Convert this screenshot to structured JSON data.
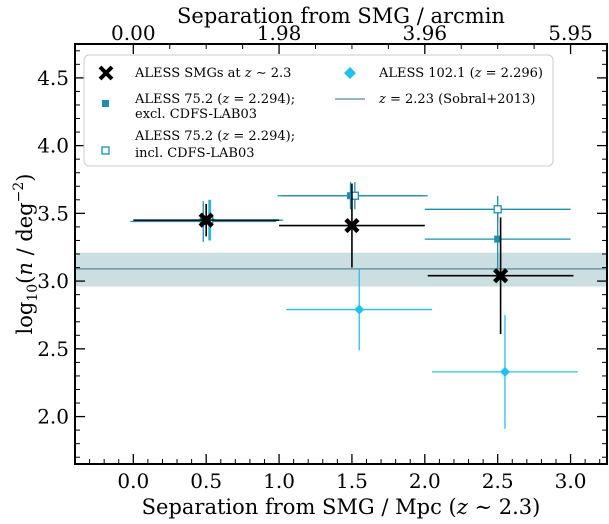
{
  "chart_data": {
    "type": "scatter",
    "top_axis_label": "Separation from SMG / arcmin",
    "top_ticks": [
      "0.00",
      "1.98",
      "3.96",
      "5.95"
    ],
    "top_tick_positions_mpc": [
      0.0,
      1.0,
      2.0,
      3.0
    ],
    "xlabel": "Separation from SMG / Mpc (z ~ 2.3)",
    "ylabel": "log10(n / deg^-2)",
    "xlim": [
      -0.4,
      3.25
    ],
    "ylim": [
      1.65,
      4.75
    ],
    "x_ticks": [
      "0.0",
      "0.5",
      "1.0",
      "1.5",
      "2.0",
      "2.5",
      "3.0"
    ],
    "y_ticks": [
      "2.0",
      "2.5",
      "3.0",
      "3.5",
      "4.0",
      "4.5"
    ],
    "grid": false,
    "legend_position": "top",
    "reference_band": {
      "label": "z = 2.23 (Sobral+2013)",
      "center": 3.09,
      "low": 2.96,
      "high": 3.21,
      "color": "#5b8a9b"
    },
    "series": [
      {
        "name": "ALESS SMGs at z ~ 2.3",
        "marker": "x",
        "color": "#000000",
        "points": [
          {
            "x": 0.5,
            "y": 3.45,
            "xerr": [
              0.5,
              0.5
            ],
            "yerr": [
              0.12,
              0.12
            ]
          },
          {
            "x": 1.5,
            "y": 3.41,
            "xerr": [
              0.5,
              0.5
            ],
            "yerr": [
              0.31,
              0.31
            ]
          },
          {
            "x": 2.52,
            "y": 3.04,
            "xerr": [
              0.5,
              0.5
            ],
            "yerr": [
              0.43,
              0.43
            ]
          }
        ]
      },
      {
        "name": "ALESS 75.2 (z = 2.294); excl. CDFS-LAB03",
        "marker": "square",
        "color": "#1a8fb0",
        "points": [
          {
            "x": 0.48,
            "y": 3.44,
            "xerr": [
              0.5,
              0.5
            ],
            "yerr": [
              0.15,
              0.15
            ]
          },
          {
            "x": 1.49,
            "y": 3.63,
            "xerr": [
              0.5,
              0.5
            ],
            "yerr": [
              0.1,
              0.1
            ]
          },
          {
            "x": 2.5,
            "y": 3.31,
            "xerr": [
              0.5,
              0.5
            ],
            "yerr": [
              0.22,
              0.22
            ]
          }
        ]
      },
      {
        "name": "ALESS 75.2 (z = 2.294); incl. CDFS-LAB03",
        "marker": "square-open",
        "color": "#1a8fb0",
        "points": [
          {
            "x": 0.52,
            "y": 3.45,
            "xerr": [
              0.5,
              0.5
            ],
            "yerr": [
              0.15,
              0.15
            ]
          },
          {
            "x": 1.52,
            "y": 3.63,
            "xerr": [
              0.5,
              0.5
            ],
            "yerr": [
              0.1,
              0.1
            ]
          },
          {
            "x": 2.5,
            "y": 3.53,
            "xerr": [
              0.5,
              0.5
            ],
            "yerr": [
              0.1,
              0.1
            ]
          }
        ]
      },
      {
        "name": "ALESS 102.1 (z = 2.296)",
        "marker": "diamond",
        "color": "#22c0f0",
        "points": [
          {
            "x": 0.53,
            "y": 3.45,
            "xerr": [
              0.5,
              0.5
            ],
            "yerr": [
              0.15,
              0.15
            ]
          },
          {
            "x": 1.55,
            "y": 2.79,
            "xerr": [
              0.5,
              0.5
            ],
            "yerr": [
              0.3,
              0.3
            ]
          },
          {
            "x": 2.55,
            "y": 2.33,
            "xerr": [
              0.5,
              0.5
            ],
            "yerr": [
              0.42,
              0.42
            ]
          }
        ]
      }
    ]
  }
}
